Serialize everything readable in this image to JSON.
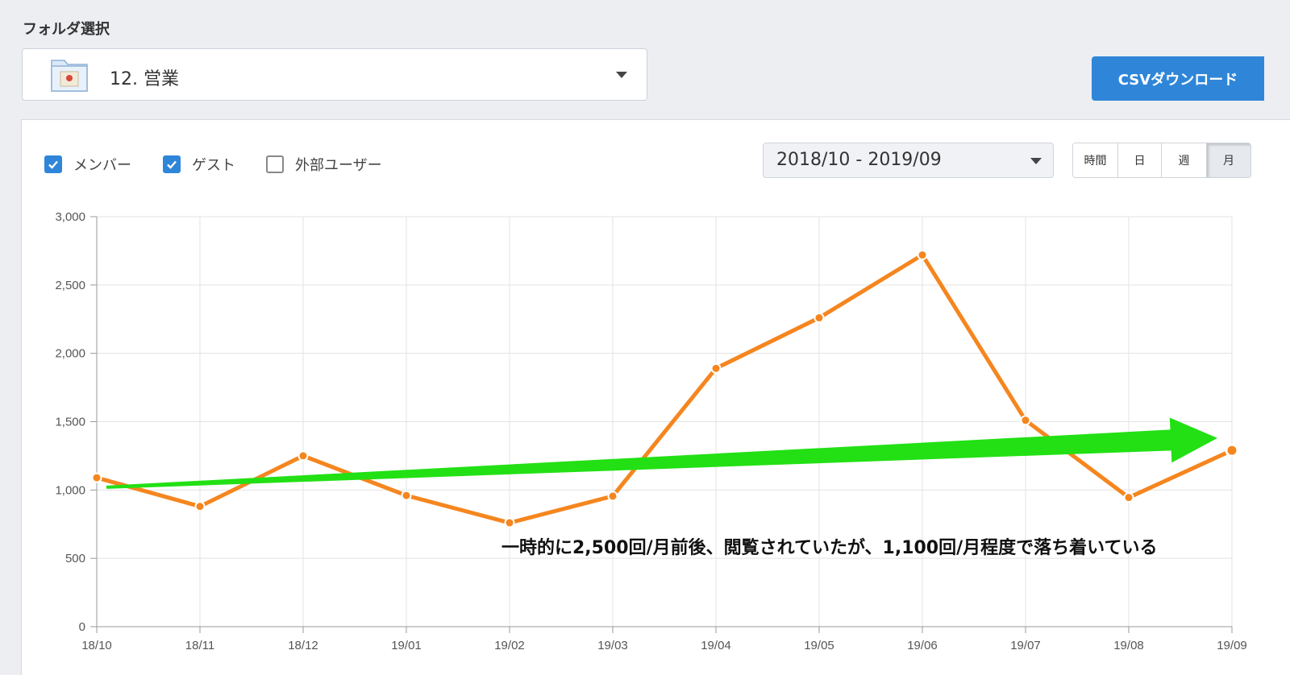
{
  "folder": {
    "label": "フォルダ選択",
    "selected": "12. 営業",
    "icon": "folder-icon"
  },
  "csv_button": "CSVダウンロード",
  "filters": [
    {
      "label": "メンバー",
      "checked": true
    },
    {
      "label": "ゲスト",
      "checked": true
    },
    {
      "label": "外部ユーザー",
      "checked": false
    }
  ],
  "range": "2018/10 - 2019/09",
  "periods": [
    {
      "label": "時間",
      "active": false
    },
    {
      "label": "日",
      "active": false
    },
    {
      "label": "週",
      "active": false
    },
    {
      "label": "月",
      "active": true
    }
  ],
  "annotation": "一時的に2,500回/月前後、閲覧されていたが、1,100回/月程度で落ち着いている",
  "colors": {
    "line": "#f5861f",
    "arrow": "#22e014",
    "accent": "#2f86d8"
  },
  "chart_data": {
    "type": "line",
    "categories": [
      "18/10",
      "18/11",
      "18/12",
      "19/01",
      "19/02",
      "19/03",
      "19/04",
      "19/05",
      "19/06",
      "19/07",
      "19/08",
      "19/09"
    ],
    "series": [
      {
        "values": [
          1090,
          880,
          1250,
          960,
          760,
          955,
          1890,
          2260,
          2720,
          1510,
          945,
          1290
        ]
      }
    ],
    "yticks": [
      "0",
      "500",
      "1,000",
      "1,500",
      "2,000",
      "2,500",
      "3,000"
    ],
    "ylim": [
      0,
      3000
    ],
    "grid": true,
    "trend_arrow": {
      "from": [
        "18/10",
        1020
      ],
      "to": [
        "19/09",
        1380
      ]
    }
  }
}
